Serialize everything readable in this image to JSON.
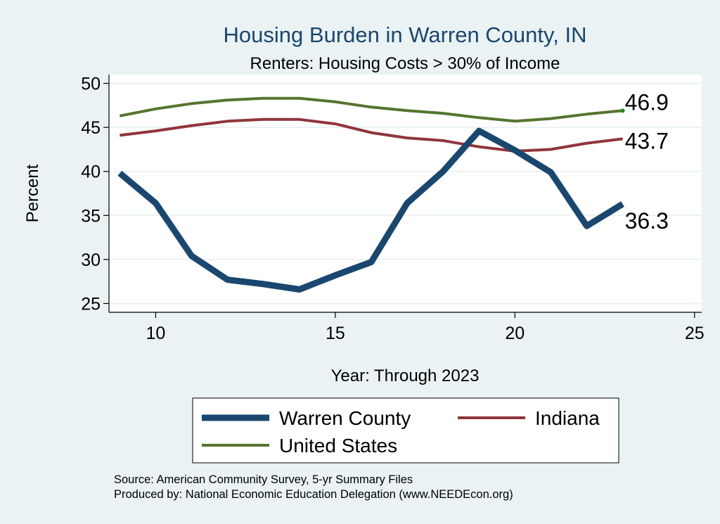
{
  "chart_data": {
    "type": "line",
    "title": "Housing Burden in Warren County, IN",
    "subtitle": "Renters: Housing Costs > 30% of Income",
    "xlabel": "Year: Through 2023",
    "ylabel": "Percent",
    "xlim": [
      8.7,
      25.2
    ],
    "ylim": [
      24,
      51
    ],
    "xticks": [
      10,
      15,
      20,
      25
    ],
    "yticks": [
      25,
      30,
      35,
      40,
      45,
      50
    ],
    "grid": true,
    "legend_position": "bottom",
    "x": [
      9,
      10,
      11,
      12,
      13,
      14,
      15,
      16,
      17,
      18,
      19,
      20,
      21,
      22,
      23
    ],
    "series": [
      {
        "name": "Warren County",
        "color": "#1a476f",
        "values": [
          39.8,
          36.4,
          30.4,
          27.7,
          27.2,
          26.6,
          28.2,
          29.7,
          36.4,
          40.0,
          44.6,
          42.4,
          39.9,
          33.8,
          36.3
        ],
        "end_label": "36.3"
      },
      {
        "name": "Indiana",
        "color": "#90353b",
        "values": [
          44.1,
          44.6,
          45.2,
          45.7,
          45.9,
          45.9,
          45.4,
          44.4,
          43.8,
          43.5,
          42.8,
          42.3,
          42.5,
          43.2,
          43.7
        ],
        "end_label": "43.7"
      },
      {
        "name": "United States",
        "color": "#55752f",
        "values": [
          46.3,
          47.1,
          47.7,
          48.1,
          48.3,
          48.3,
          47.9,
          47.3,
          46.9,
          46.6,
          46.1,
          45.7,
          46.0,
          46.5,
          46.9
        ],
        "end_label": "46.9"
      }
    ]
  },
  "footer": {
    "source": "Source: American Community Survey, 5-yr Summary Files",
    "produced": "Produced by: National Economic Education Delegation (www.NEEDEcon.org)"
  },
  "colors": {
    "background": "#eaf2f3",
    "plot_background": "#ffffff",
    "grid": "#eaf2f3",
    "title": "#1a476f"
  }
}
